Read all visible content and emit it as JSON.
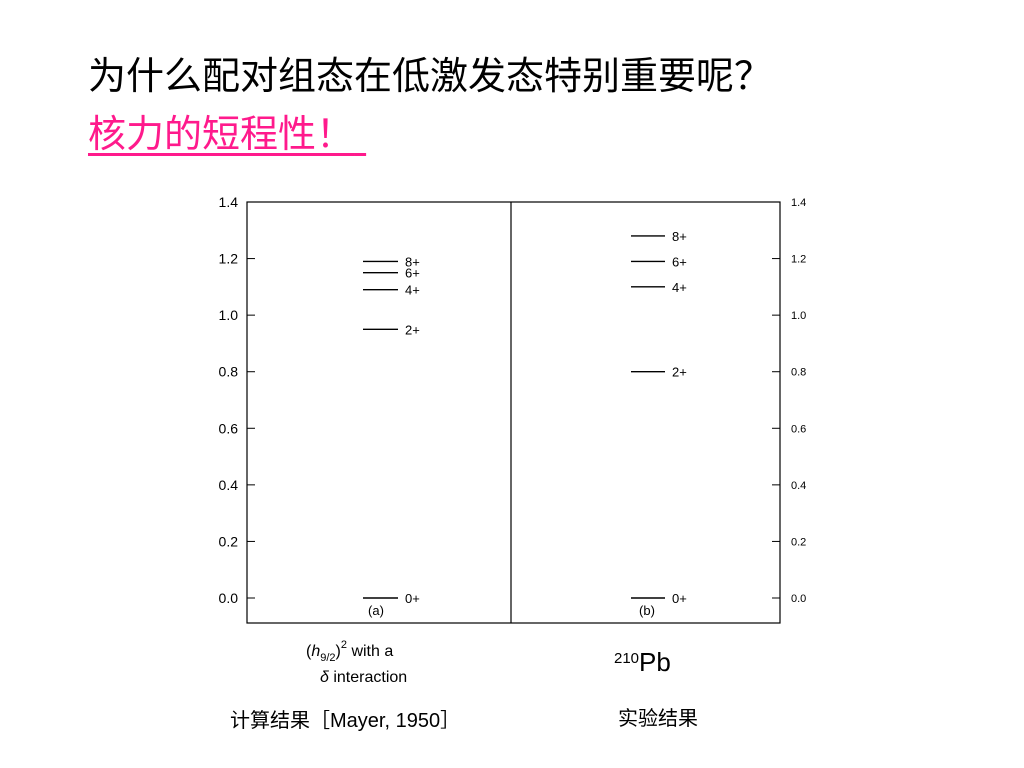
{
  "slide": {
    "title": "为什么配对组态在低激发态特别重要呢？",
    "subtitle": "核力的短程性！"
  },
  "colors": {
    "subtitle": "#ff1a8c",
    "plot_line": "#000000"
  },
  "chart_data": {
    "type": "energy-level diagram",
    "y_ticks": [
      "0.0",
      "0.2",
      "0.4",
      "0.6",
      "0.8",
      "1.0",
      "1.2",
      "1.4"
    ],
    "ylim": [
      0,
      1.4
    ],
    "panels": [
      {
        "panel_label": "(a)",
        "levels": [
          {
            "label": "0+",
            "energy": 0.0
          },
          {
            "label": "2+",
            "energy": 0.95
          },
          {
            "label": "4+",
            "energy": 1.09
          },
          {
            "label": "6+",
            "energy": 1.15
          },
          {
            "label": "8+",
            "energy": 1.19
          }
        ],
        "description_line1": "with a",
        "description_line2": "interaction",
        "orbital_symbol": "h",
        "orbital_subscript": "9/2",
        "power": "2",
        "delta_symbol": "δ"
      },
      {
        "panel_label": "(b)",
        "levels": [
          {
            "label": "0+",
            "energy": 0.0
          },
          {
            "label": "2+",
            "energy": 0.8
          },
          {
            "label": "4+",
            "energy": 1.1
          },
          {
            "label": "6+",
            "energy": 1.19
          },
          {
            "label": "8+",
            "energy": 1.28
          }
        ],
        "mass_number": "210",
        "element": "Pb"
      }
    ]
  },
  "captions": {
    "left_prefix": "计算结果［",
    "left_ref": "Mayer, 1950",
    "left_suffix": "］",
    "right": "实验结果"
  }
}
